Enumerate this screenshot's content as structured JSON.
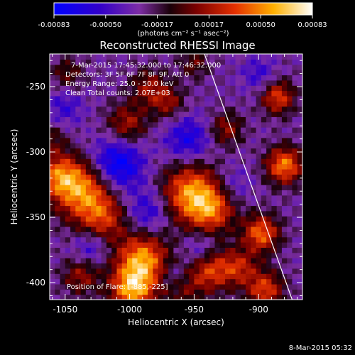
{
  "chart_data": {
    "type": "heatmap",
    "title": "Reconstructed RHESSI Image",
    "xlabel": "Heliocentric X (arcsec)",
    "ylabel": "Heliocentric Y (arcsec)",
    "xlim": [
      -1062,
      -866
    ],
    "ylim": [
      -413,
      -225
    ],
    "xticks": [
      -1050,
      -1000,
      -950,
      -900
    ],
    "yticks": [
      -250,
      -300,
      -350,
      -400
    ],
    "colorbar": {
      "range": [
        -0.00083,
        0.00083
      ],
      "ticks": [
        "-0.00083",
        "-0.00050",
        "-0.00017",
        "0.00017",
        "0.00050",
        "0.00083"
      ],
      "units": "(photons cm⁻² s⁻¹ asec⁻²)"
    },
    "annotations": [
      "7-Mar-2015 17:45:32.000  to 17:46:32.000",
      "Detectors: 3F 5F 6F 7F 8F 9F, Att 0",
      "Energy Range: 25.0 - 50.0 keV",
      "Clean     Total counts: 2.07E+03"
    ],
    "position_label": "Position of Flare: [-885,-225]",
    "timestamp": "8-Mar-2015 05:32",
    "limb_line": [
      [
        -942,
        -225
      ],
      [
        -874,
        -413
      ]
    ],
    "blobs": [
      {
        "x": -1035,
        "y": -330,
        "amp": 0.00075,
        "r": 16
      },
      {
        "x": -1055,
        "y": -318,
        "amp": 0.0006,
        "r": 12
      },
      {
        "x": -1020,
        "y": -352,
        "amp": 0.00045,
        "r": 13
      },
      {
        "x": -1038,
        "y": -395,
        "amp": 0.0004,
        "r": 10
      },
      {
        "x": -990,
        "y": -382,
        "amp": 0.0008,
        "r": 14
      },
      {
        "x": -998,
        "y": -405,
        "amp": 0.0008,
        "r": 12
      },
      {
        "x": -952,
        "y": -332,
        "amp": 0.00082,
        "r": 16
      },
      {
        "x": -935,
        "y": -345,
        "amp": 0.0005,
        "r": 12
      },
      {
        "x": -1002,
        "y": -278,
        "amp": 0.00045,
        "r": 11
      },
      {
        "x": -985,
        "y": -250,
        "amp": 0.0004,
        "r": 10
      },
      {
        "x": -970,
        "y": -262,
        "amp": 0.00038,
        "r": 9
      },
      {
        "x": -950,
        "y": -232,
        "amp": 0.0003,
        "r": 8
      },
      {
        "x": -1048,
        "y": -240,
        "amp": 0.0003,
        "r": 9
      },
      {
        "x": -938,
        "y": -390,
        "amp": 0.0006,
        "r": 12
      },
      {
        "x": -915,
        "y": -388,
        "amp": 0.00045,
        "r": 10
      },
      {
        "x": -898,
        "y": -362,
        "amp": 0.0007,
        "r": 10
      },
      {
        "x": -880,
        "y": -310,
        "amp": 0.00075,
        "r": 10
      },
      {
        "x": -885,
        "y": -258,
        "amp": 0.0006,
        "r": 9
      },
      {
        "x": -925,
        "y": -282,
        "amp": 0.0004,
        "r": 9
      },
      {
        "x": -895,
        "y": -405,
        "amp": 0.0006,
        "r": 10
      },
      {
        "x": -960,
        "y": -405,
        "amp": 0.0003,
        "r": 10
      },
      {
        "x": -1060,
        "y": -290,
        "amp": 0.00025,
        "r": 8
      },
      {
        "x": -1010,
        "y": -310,
        "amp": -0.0006,
        "r": 14
      },
      {
        "x": -955,
        "y": -290,
        "amp": -0.0004,
        "r": 12
      },
      {
        "x": -1050,
        "y": -265,
        "amp": -0.00025,
        "r": 10
      },
      {
        "x": -985,
        "y": -345,
        "amp": -0.00035,
        "r": 12
      },
      {
        "x": -900,
        "y": -240,
        "amp": -0.00025,
        "r": 9
      },
      {
        "x": -945,
        "y": -375,
        "amp": -0.0003,
        "r": 9
      },
      {
        "x": -920,
        "y": -325,
        "amp": -0.0002,
        "r": 10
      },
      {
        "x": -1030,
        "y": -372,
        "amp": -0.0003,
        "r": 9
      },
      {
        "x": -965,
        "y": -395,
        "amp": -0.00025,
        "r": 8
      }
    ]
  }
}
